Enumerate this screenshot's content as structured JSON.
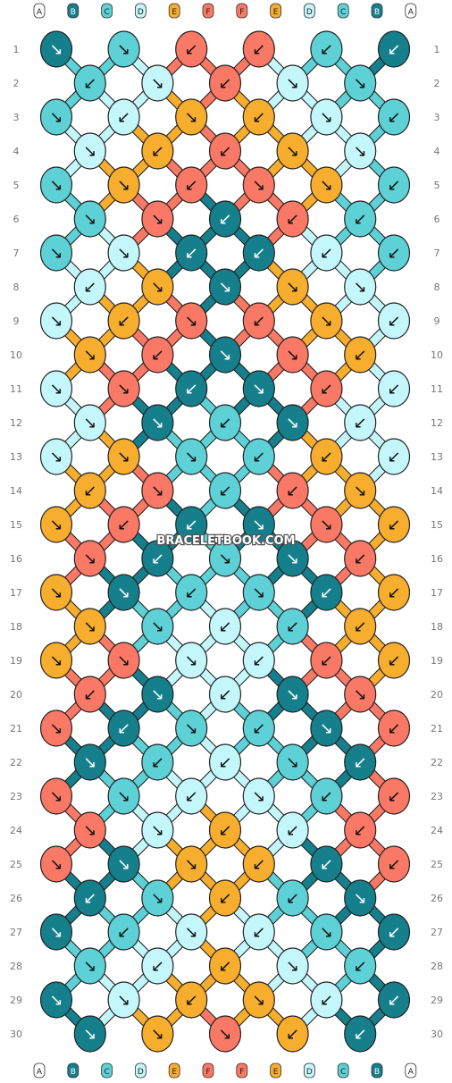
{
  "watermark": "BRACELETBOOK.COM",
  "strings": [
    "A",
    "B",
    "C",
    "D",
    "E",
    "F",
    "F",
    "E",
    "D",
    "C",
    "B",
    "A"
  ],
  "colors": {
    "A": "#ffffff",
    "B": "#167f8c",
    "C": "#5ed1d6",
    "D": "#c4f7fb",
    "E": "#f7ad2e",
    "F": "#f97866"
  },
  "rows": [
    "1",
    "2",
    "3",
    "4",
    "5",
    "6",
    "7",
    "8",
    "9",
    "10",
    "11",
    "12",
    "13",
    "14",
    "15",
    "16",
    "17",
    "18",
    "19",
    "20",
    "21",
    "22",
    "23",
    "24",
    "25",
    "26",
    "27",
    "28",
    "29",
    "30"
  ],
  "knots": [
    [
      "B",
      "C",
      "F",
      "F",
      "C",
      "B"
    ],
    [
      "C",
      "D",
      "F",
      "D",
      "C"
    ],
    [
      "C",
      "D",
      "E",
      "E",
      "D",
      "C"
    ],
    [
      "D",
      "E",
      "F",
      "E",
      "D"
    ],
    [
      "C",
      "E",
      "F",
      "F",
      "E",
      "C"
    ],
    [
      "C",
      "F",
      "B",
      "F",
      "C"
    ],
    [
      "C",
      "D",
      "B",
      "B",
      "D",
      "C"
    ],
    [
      "D",
      "E",
      "B",
      "E",
      "D"
    ],
    [
      "D",
      "E",
      "F",
      "F",
      "E",
      "D"
    ],
    [
      "E",
      "F",
      "B",
      "F",
      "E"
    ],
    [
      "D",
      "F",
      "B",
      "B",
      "F",
      "D"
    ],
    [
      "D",
      "B",
      "C",
      "B",
      "D"
    ],
    [
      "D",
      "E",
      "C",
      "C",
      "E",
      "D"
    ],
    [
      "E",
      "F",
      "C",
      "F",
      "E"
    ],
    [
      "E",
      "F",
      "B",
      "B",
      "F",
      "E"
    ],
    [
      "F",
      "B",
      "C",
      "B",
      "F"
    ],
    [
      "E",
      "B",
      "C",
      "C",
      "B",
      "E"
    ],
    [
      "E",
      "C",
      "D",
      "C",
      "E"
    ],
    [
      "E",
      "F",
      "D",
      "D",
      "F",
      "E"
    ],
    [
      "F",
      "B",
      "D",
      "B",
      "F"
    ],
    [
      "F",
      "B",
      "C",
      "C",
      "B",
      "F"
    ],
    [
      "B",
      "C",
      "D",
      "C",
      "B"
    ],
    [
      "F",
      "C",
      "D",
      "D",
      "C",
      "F"
    ],
    [
      "F",
      "D",
      "E",
      "D",
      "F"
    ],
    [
      "F",
      "B",
      "E",
      "E",
      "B",
      "F"
    ],
    [
      "B",
      "C",
      "E",
      "C",
      "B"
    ],
    [
      "B",
      "C",
      "D",
      "D",
      "C",
      "B"
    ],
    [
      "C",
      "D",
      "E",
      "D",
      "C"
    ],
    [
      "B",
      "D",
      "E",
      "E",
      "D",
      "B"
    ],
    [
      "B",
      "E",
      "F",
      "E",
      "B"
    ]
  ],
  "arrows": [
    [
      "↘",
      "↘",
      "↙",
      "↙",
      "↙",
      "↙"
    ],
    [
      "↙",
      "↘",
      "↙",
      "↘",
      "↘"
    ],
    [
      "↘",
      "↙",
      "↘",
      "↙",
      "↘",
      "↙"
    ],
    [
      "↘",
      "↙",
      "↙",
      "↘",
      "↘"
    ],
    [
      "↘",
      "↘",
      "↙",
      "↘",
      "↘",
      "↙"
    ],
    [
      "↘",
      "↘",
      "↙",
      "↙",
      "↙"
    ],
    [
      "↘",
      "↘",
      "↙",
      "↙",
      "↙",
      "↙"
    ],
    [
      "↙",
      "↘",
      "↘",
      "↘",
      "↘"
    ],
    [
      "↘",
      "↙",
      "↘",
      "↙",
      "↘",
      "↙"
    ],
    [
      "↘",
      "↙",
      "↘",
      "↘",
      "↙"
    ],
    [
      "↘",
      "↘",
      "↙",
      "↘",
      "↙",
      "↙"
    ],
    [
      "↘",
      "↘",
      "↙",
      "↘",
      "↙"
    ],
    [
      "↘",
      "↘",
      "↘",
      "↙",
      "↙",
      "↙"
    ],
    [
      "↙",
      "↘",
      "↙",
      "↙",
      "↘"
    ],
    [
      "↘",
      "↙",
      "↙",
      "↘",
      "↘",
      "↙"
    ],
    [
      "↘",
      "↙",
      "↘",
      "↘",
      "↙"
    ],
    [
      "↘",
      "↘",
      "↙",
      "↘",
      "↙",
      "↙"
    ],
    [
      "↘",
      "↘",
      "↙",
      "↙",
      "↙"
    ],
    [
      "↘",
      "↘",
      "↘",
      "↙",
      "↙",
      "↙"
    ],
    [
      "↙",
      "↘",
      "↙",
      "↘",
      "↘"
    ],
    [
      "↘",
      "↙",
      "↘",
      "↙",
      "↘",
      "↙"
    ],
    [
      "↘",
      "↙",
      "↙",
      "↘",
      "↙"
    ],
    [
      "↘",
      "↘",
      "↙",
      "↘",
      "↙",
      "↙"
    ],
    [
      "↘",
      "↘",
      "↙",
      "↙",
      "↙"
    ],
    [
      "↘",
      "↘",
      "↘",
      "↙",
      "↙",
      "↙"
    ],
    [
      "↙",
      "↘",
      "↙",
      "↙",
      "↘"
    ],
    [
      "↘",
      "↙",
      "↘",
      "↙",
      "↘",
      "↙"
    ],
    [
      "↘",
      "↙",
      "↙",
      "↘",
      "↙"
    ],
    [
      "↘",
      "↘",
      "↙",
      "↘",
      "↙",
      "↙"
    ],
    [
      "↘",
      "↘",
      "↘",
      "↙",
      "↙"
    ]
  ]
}
